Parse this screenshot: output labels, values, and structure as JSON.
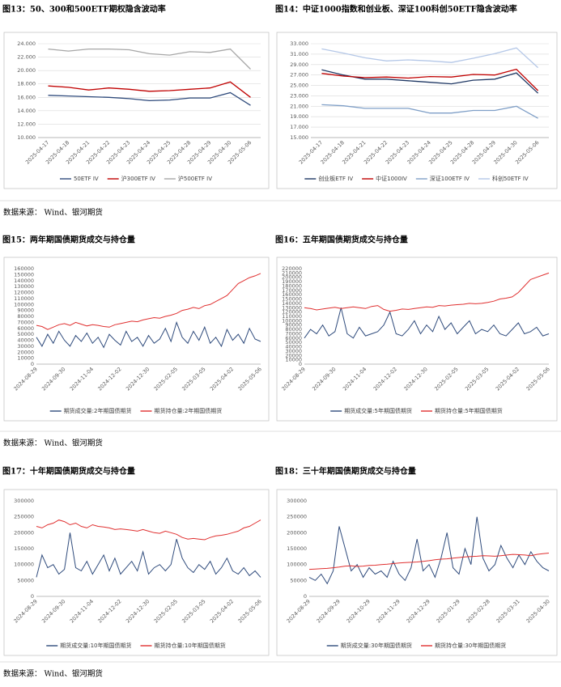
{
  "chart_data": [
    {
      "type": "line",
      "title": "图13：50、300和500ETF期权隐含波动率",
      "categories": [
        "2025-04-17",
        "2025-04-18",
        "2025-04-21",
        "2025-04-22",
        "2025-04-23",
        "2025-04-24",
        "2025-04-25",
        "2025-04-28",
        "2025-04-29",
        "2025-04-30",
        "2025-05-06"
      ],
      "series": [
        {
          "name": "50ETF IV",
          "color": "#2f4b7c",
          "values": [
            16.3,
            16.2,
            16.1,
            16.0,
            15.8,
            15.5,
            15.6,
            15.9,
            15.9,
            16.7,
            14.8
          ]
        },
        {
          "name": "沪300ETF IV",
          "color": "#c00000",
          "values": [
            17.7,
            17.5,
            17.1,
            17.4,
            17.2,
            16.9,
            17.0,
            17.2,
            17.4,
            18.3,
            16.0
          ]
        },
        {
          "name": "沪500ETF IV",
          "color": "#a6a6a6",
          "values": [
            23.2,
            22.9,
            23.2,
            23.2,
            23.1,
            22.5,
            22.3,
            22.8,
            22.7,
            23.2,
            20.2
          ]
        }
      ],
      "ylim": [
        10,
        24
      ],
      "yticks": [
        {
          "value": 10,
          "label": "10.000"
        },
        {
          "value": 12,
          "label": "12.000"
        },
        {
          "value": 14,
          "label": "14.000"
        },
        {
          "value": 16,
          "label": "16.000"
        },
        {
          "value": 18,
          "label": "18.000"
        },
        {
          "value": 20,
          "label": "20.000"
        },
        {
          "value": 22,
          "label": "22.000"
        },
        {
          "value": 24,
          "label": "24.000"
        }
      ],
      "grid": true,
      "legend": "bottom"
    },
    {
      "type": "line",
      "title": "图14：中证1000指数和创业板、深证100科创50ETF隐含波动率",
      "categories": [
        "2025-04-17",
        "2025-04-18",
        "2025-04-21",
        "2025-04-22",
        "2025-04-23",
        "2025-04-24",
        "2025-04-25",
        "2025-04-28",
        "2025-04-29",
        "2025-04-30",
        "2025-05-06"
      ],
      "series": [
        {
          "name": "创业板ETF IV",
          "color": "#1f3864",
          "values": [
            28.0,
            27.0,
            26.2,
            26.2,
            25.9,
            25.6,
            25.3,
            26.0,
            26.2,
            27.4,
            23.5
          ]
        },
        {
          "name": "中证1000IV",
          "color": "#c00000",
          "values": [
            27.3,
            26.8,
            26.5,
            26.6,
            26.4,
            26.7,
            26.6,
            27.1,
            27.0,
            28.1,
            24.0
          ]
        },
        {
          "name": "深证100ETF IV",
          "color": "#7f9fc7",
          "values": [
            21.3,
            21.1,
            20.6,
            20.6,
            20.6,
            19.7,
            19.7,
            20.2,
            20.2,
            21.0,
            18.7
          ]
        },
        {
          "name": "科创50ETF IV",
          "color": "#b4c7e7",
          "values": [
            32.0,
            31.2,
            30.3,
            29.7,
            29.9,
            29.7,
            29.4,
            30.2,
            31.1,
            32.2,
            28.4
          ]
        }
      ],
      "ylim": [
        15,
        33
      ],
      "yticks": [
        {
          "value": 15,
          "label": "15.000"
        },
        {
          "value": 17,
          "label": "17.000"
        },
        {
          "value": 19,
          "label": "19.000"
        },
        {
          "value": 21,
          "label": "21.000"
        },
        {
          "value": 23,
          "label": "23.000"
        },
        {
          "value": 25,
          "label": "25.000"
        },
        {
          "value": 27,
          "label": "27.000"
        },
        {
          "value": 29,
          "label": "29.000"
        },
        {
          "value": 31,
          "label": "31.000"
        },
        {
          "value": 33,
          "label": "33.000"
        }
      ],
      "grid": true,
      "legend": "bottom"
    },
    {
      "type": "line",
      "title": "图15：两年期国债期货成交与持仓量",
      "categories": [
        "2024-08-29",
        null,
        null,
        null,
        null,
        "2024-09-30",
        null,
        null,
        null,
        null,
        "2024-11-04",
        null,
        null,
        null,
        null,
        "2024-12-02",
        null,
        null,
        null,
        null,
        "2024-12-30",
        null,
        null,
        null,
        null,
        "2025-02-05",
        null,
        null,
        null,
        null,
        "2025-03-05",
        null,
        null,
        null,
        null,
        "2025-04-02",
        null,
        null,
        null,
        null,
        "2025-05-06"
      ],
      "series": [
        {
          "name": "期货成交量:2年期国债期货",
          "color": "#2f4b7c",
          "values": [
            45000,
            30000,
            50000,
            35000,
            55000,
            40000,
            30000,
            48000,
            38000,
            52000,
            35000,
            45000,
            28000,
            50000,
            40000,
            32000,
            55000,
            38000,
            45000,
            30000,
            48000,
            35000,
            42000,
            60000,
            38000,
            70000,
            45000,
            35000,
            55000,
            40000,
            62000,
            35000,
            45000,
            30000,
            58000,
            40000,
            50000,
            35000,
            60000,
            42000,
            38000
          ]
        },
        {
          "name": "期货持仓量:2年期国债期货",
          "color": "#e03030",
          "values": [
            65000,
            63000,
            58000,
            62000,
            66000,
            68000,
            65000,
            70000,
            67000,
            64000,
            66000,
            65000,
            63000,
            62000,
            66000,
            68000,
            70000,
            72000,
            71000,
            74000,
            76000,
            78000,
            77000,
            80000,
            82000,
            85000,
            90000,
            92000,
            95000,
            93000,
            98000,
            100000,
            105000,
            110000,
            115000,
            125000,
            135000,
            140000,
            145000,
            148000,
            152000
          ]
        }
      ],
      "ylim": [
        0,
        160000
      ],
      "yticks": [
        0,
        10000,
        20000,
        30000,
        40000,
        50000,
        60000,
        70000,
        80000,
        90000,
        100000,
        110000,
        120000,
        130000,
        140000,
        150000,
        160000
      ],
      "grid": false,
      "legend": "bottom"
    },
    {
      "type": "line",
      "title": "图16：五年期国债期货成交与持仓量",
      "categories": [
        "2024-08-29",
        null,
        null,
        null,
        null,
        "2024-09-30",
        null,
        null,
        null,
        null,
        "2024-11-04",
        null,
        null,
        null,
        null,
        "2024-12-02",
        null,
        null,
        null,
        null,
        "2024-12-30",
        null,
        null,
        null,
        null,
        "2025-02-05",
        null,
        null,
        null,
        null,
        "2025-03-05",
        null,
        null,
        null,
        null,
        "2025-04-02",
        null,
        null,
        null,
        null,
        "2025-05-06"
      ],
      "series": [
        {
          "name": "期货成交量:5年期国债期货",
          "color": "#2f4b7c",
          "values": [
            60000,
            80000,
            70000,
            90000,
            65000,
            75000,
            130000,
            70000,
            60000,
            85000,
            65000,
            70000,
            75000,
            90000,
            120000,
            70000,
            65000,
            80000,
            100000,
            70000,
            90000,
            75000,
            110000,
            80000,
            95000,
            70000,
            85000,
            100000,
            70000,
            80000,
            75000,
            90000,
            70000,
            65000,
            80000,
            95000,
            70000,
            75000,
            85000,
            65000,
            70000
          ]
        },
        {
          "name": "期货持仓量:5年期国债期货",
          "color": "#e03030",
          "values": [
            130000,
            128000,
            125000,
            127000,
            129000,
            131000,
            128000,
            130000,
            132000,
            130000,
            128000,
            133000,
            135000,
            126000,
            122000,
            124000,
            127000,
            126000,
            128000,
            130000,
            132000,
            131000,
            135000,
            134000,
            136000,
            137000,
            138000,
            140000,
            139000,
            140000,
            142000,
            145000,
            150000,
            152000,
            155000,
            165000,
            180000,
            195000,
            200000,
            205000,
            210000
          ]
        }
      ],
      "ylim": [
        0,
        220000
      ],
      "yticks": [
        0,
        10000,
        20000,
        30000,
        40000,
        50000,
        60000,
        70000,
        80000,
        90000,
        100000,
        110000,
        120000,
        130000,
        140000,
        150000,
        160000,
        170000,
        180000,
        190000,
        200000,
        210000,
        220000
      ],
      "grid": false,
      "legend": "bottom"
    },
    {
      "type": "line",
      "title": "图17：十年期国债期货成交与持仓量",
      "categories": [
        "2024-08-29",
        null,
        null,
        null,
        null,
        "2024-09-30",
        null,
        null,
        null,
        null,
        "2024-11-04",
        null,
        null,
        null,
        null,
        "2024-12-02",
        null,
        null,
        null,
        null,
        "2024-12-30",
        null,
        null,
        null,
        null,
        "2025-02-05",
        null,
        null,
        null,
        null,
        "2025-03-05",
        null,
        null,
        null,
        null,
        "2025-04-02",
        null,
        null,
        null,
        null,
        "2025-05-06"
      ],
      "series": [
        {
          "name": "期货成交量:10年期国债期货",
          "color": "#2f4b7c",
          "values": [
            60000,
            130000,
            90000,
            100000,
            70000,
            85000,
            200000,
            90000,
            80000,
            110000,
            70000,
            100000,
            130000,
            80000,
            120000,
            70000,
            90000,
            110000,
            80000,
            140000,
            70000,
            90000,
            100000,
            80000,
            100000,
            180000,
            120000,
            90000,
            75000,
            100000,
            85000,
            110000,
            70000,
            90000,
            120000,
            80000,
            70000,
            90000,
            65000,
            80000,
            60000
          ]
        },
        {
          "name": "期货持仓量:10年期国债期货",
          "color": "#e03030",
          "values": [
            220000,
            215000,
            225000,
            230000,
            240000,
            235000,
            225000,
            230000,
            220000,
            215000,
            225000,
            220000,
            218000,
            215000,
            210000,
            212000,
            210000,
            208000,
            205000,
            210000,
            205000,
            200000,
            198000,
            205000,
            200000,
            195000,
            185000,
            180000,
            182000,
            180000,
            178000,
            185000,
            190000,
            192000,
            195000,
            200000,
            205000,
            215000,
            220000,
            230000,
            240000
          ]
        }
      ],
      "ylim": [
        0,
        300000
      ],
      "yticks": [
        0,
        50000,
        100000,
        150000,
        200000,
        250000,
        300000
      ],
      "grid": false,
      "legend": "bottom"
    },
    {
      "type": "line",
      "title": "图18：三十年期国债期货成交与持仓量",
      "categories": [
        "2024-08-29",
        null,
        null,
        null,
        null,
        "2024-09-29",
        null,
        null,
        null,
        null,
        "2024-10-29",
        null,
        null,
        null,
        null,
        "2024-11-29",
        null,
        null,
        null,
        null,
        "2024-12-29",
        null,
        null,
        null,
        null,
        "2025-01-29",
        null,
        null,
        null,
        null,
        "2025-02-28",
        null,
        null,
        null,
        null,
        "2025-03-31",
        null,
        null,
        null,
        null,
        "2025-04-30"
      ],
      "series": [
        {
          "name": "期货成交量:30年期国债期货",
          "color": "#2f4b7c",
          "values": [
            60000,
            50000,
            70000,
            40000,
            80000,
            220000,
            150000,
            80000,
            100000,
            60000,
            90000,
            70000,
            80000,
            60000,
            110000,
            70000,
            50000,
            90000,
            180000,
            80000,
            100000,
            60000,
            120000,
            200000,
            90000,
            70000,
            150000,
            100000,
            250000,
            120000,
            80000,
            100000,
            160000,
            120000,
            90000,
            130000,
            100000,
            140000,
            110000,
            90000,
            80000
          ]
        },
        {
          "name": "期货持仓量:30年期国债期货",
          "color": "#e03030",
          "values": [
            85000,
            86000,
            87000,
            88000,
            90000,
            92000,
            95000,
            96000,
            94000,
            95000,
            97000,
            98000,
            100000,
            101000,
            103000,
            105000,
            106000,
            107000,
            108000,
            110000,
            112000,
            115000,
            117000,
            118000,
            120000,
            122000,
            124000,
            125000,
            126000,
            128000,
            127000,
            126000,
            128000,
            130000,
            132000,
            131000,
            130000,
            128000,
            132000,
            134000,
            136000
          ]
        }
      ],
      "ylim": [
        0,
        300000
      ],
      "yticks": [
        0,
        50000,
        100000,
        150000,
        200000,
        250000,
        300000
      ],
      "grid": false,
      "legend": "bottom"
    }
  ],
  "sources": [
    "数据来源： Wind、银河期货",
    "数据来源： Wind、银河期货",
    "数据来源： Wind、银河期货"
  ]
}
